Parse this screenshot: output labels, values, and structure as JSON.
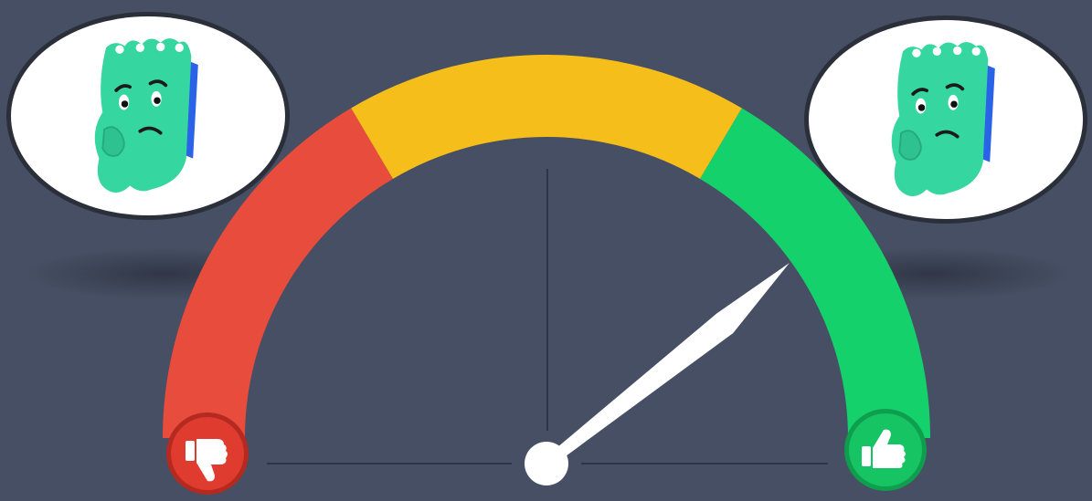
{
  "gauge": {
    "value_fraction": 0.78,
    "segments": [
      {
        "name": "bad",
        "from": 0.0,
        "to": 0.33,
        "color": "#e74c3c"
      },
      {
        "name": "neutral",
        "from": 0.33,
        "to": 0.67,
        "color": "#f5be1b"
      },
      {
        "name": "good",
        "from": 0.67,
        "to": 1.0,
        "color": "#14d16b"
      }
    ],
    "needle_color": "#ffffff",
    "hub_color": "#ffffff",
    "guide_line_color": "#2f3545"
  },
  "icons": {
    "left_end": "thumbs-down-icon",
    "right_end": "thumbs-up-icon",
    "left_badge_color": "#e03b2f",
    "right_badge_color": "#16c463"
  },
  "characters": {
    "left": {
      "icon": "confused-notepad-character-icon",
      "body_color": "#36d6a0"
    },
    "right": {
      "icon": "confused-notepad-character-icon",
      "body_color": "#36d6a0"
    }
  },
  "colors": {
    "background": "#464f63"
  }
}
